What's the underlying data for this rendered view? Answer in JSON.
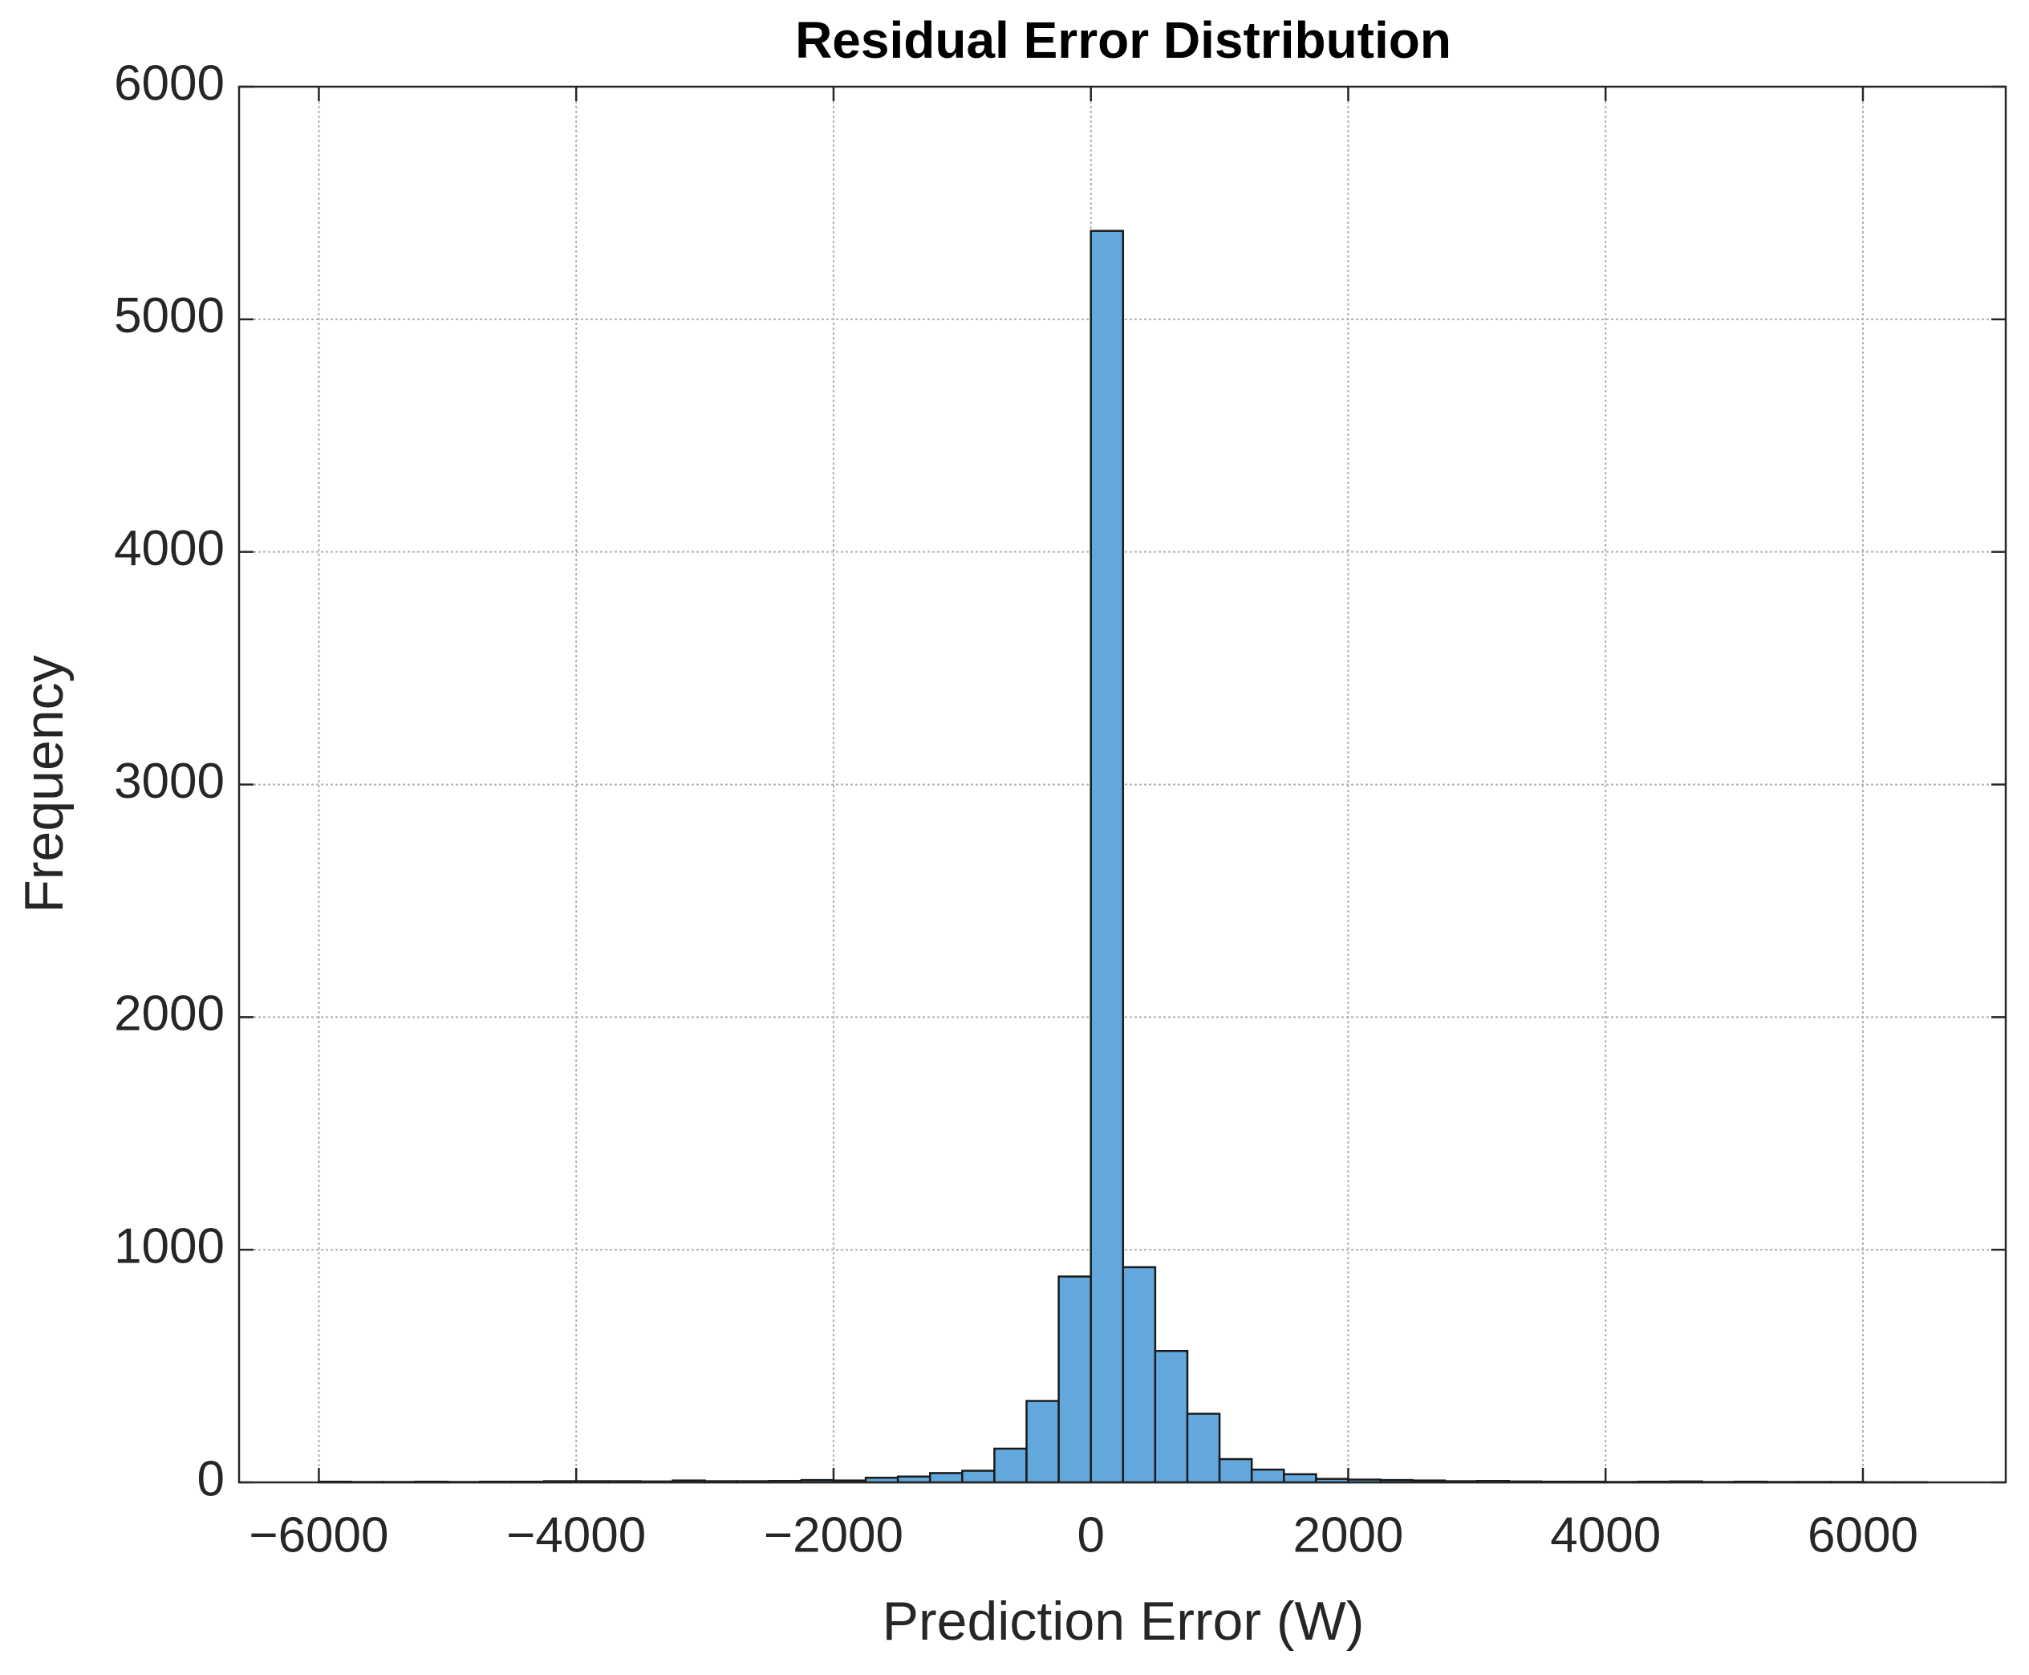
{
  "chart_data": {
    "type": "histogram",
    "title": "Residual Error Distribution",
    "xlabel": "Prediction Error (W)",
    "ylabel": "Frequency",
    "bins": [
      -6000,
      -5750,
      -5500,
      -5250,
      -5000,
      -4750,
      -4500,
      -4250,
      -4000,
      -3750,
      -3500,
      -3250,
      -3000,
      -2750,
      -2500,
      -2250,
      -2000,
      -1750,
      -1500,
      -1250,
      -1000,
      -750,
      -500,
      -250,
      0,
      250,
      500,
      750,
      1000,
      1250,
      1500,
      1750,
      2000,
      2250,
      2500,
      2750,
      3000,
      3250,
      3500,
      3750,
      4000,
      4250,
      4500,
      4750,
      5000,
      5250,
      5500,
      5750,
      6000,
      6250,
      6500
    ],
    "values": [
      3,
      2,
      2,
      3,
      2,
      3,
      3,
      5,
      5,
      5,
      4,
      8,
      5,
      5,
      6,
      10,
      8,
      20,
      25,
      40,
      50,
      145,
      350,
      885,
      5380,
      925,
      565,
      295,
      100,
      55,
      35,
      15,
      12,
      10,
      8,
      5,
      6,
      4,
      3,
      3,
      2,
      3,
      4,
      2,
      3,
      2,
      2,
      2,
      1,
      1
    ],
    "color": "#62a8dc",
    "edgecolor": "#1a1a1a",
    "xlim": [
      -6620,
      7110
    ],
    "ylim": [
      0,
      6000
    ],
    "xticks": [
      {
        "value": -6000,
        "label": "−6000"
      },
      {
        "value": -4000,
        "label": "−4000"
      },
      {
        "value": -2000,
        "label": "−2000"
      },
      0,
      2000,
      4000,
      6000
    ],
    "yticks": [
      0,
      1000,
      2000,
      3000,
      4000,
      5000,
      6000
    ],
    "grid": true
  }
}
